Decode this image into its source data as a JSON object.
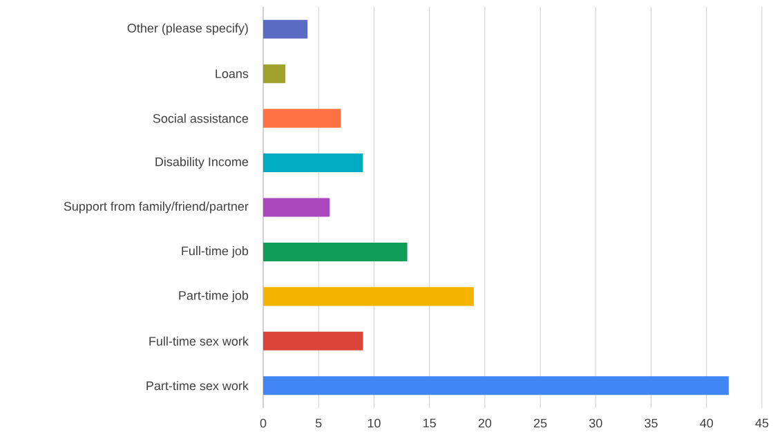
{
  "chart_data": {
    "type": "bar",
    "orientation": "horizontal",
    "categories": [
      "Other (please specify)",
      "Loans",
      "Social assistance",
      "Disability Income",
      "Support from family/friend/partner",
      "Full-time job",
      "Part-time job",
      "Full-time sex work",
      "Part-time sex work"
    ],
    "values": [
      4,
      2,
      7,
      9,
      6,
      13,
      19,
      9,
      42
    ],
    "colors": [
      "#5b6bc4",
      "#9ea12c",
      "#ff7043",
      "#00acc1",
      "#ab47bc",
      "#0f9d58",
      "#f4b400",
      "#db4437",
      "#4285f4"
    ],
    "xlim": [
      0,
      45
    ],
    "xticks": [
      0,
      5,
      10,
      15,
      20,
      25,
      30,
      35,
      40,
      45
    ],
    "grid": "x"
  }
}
